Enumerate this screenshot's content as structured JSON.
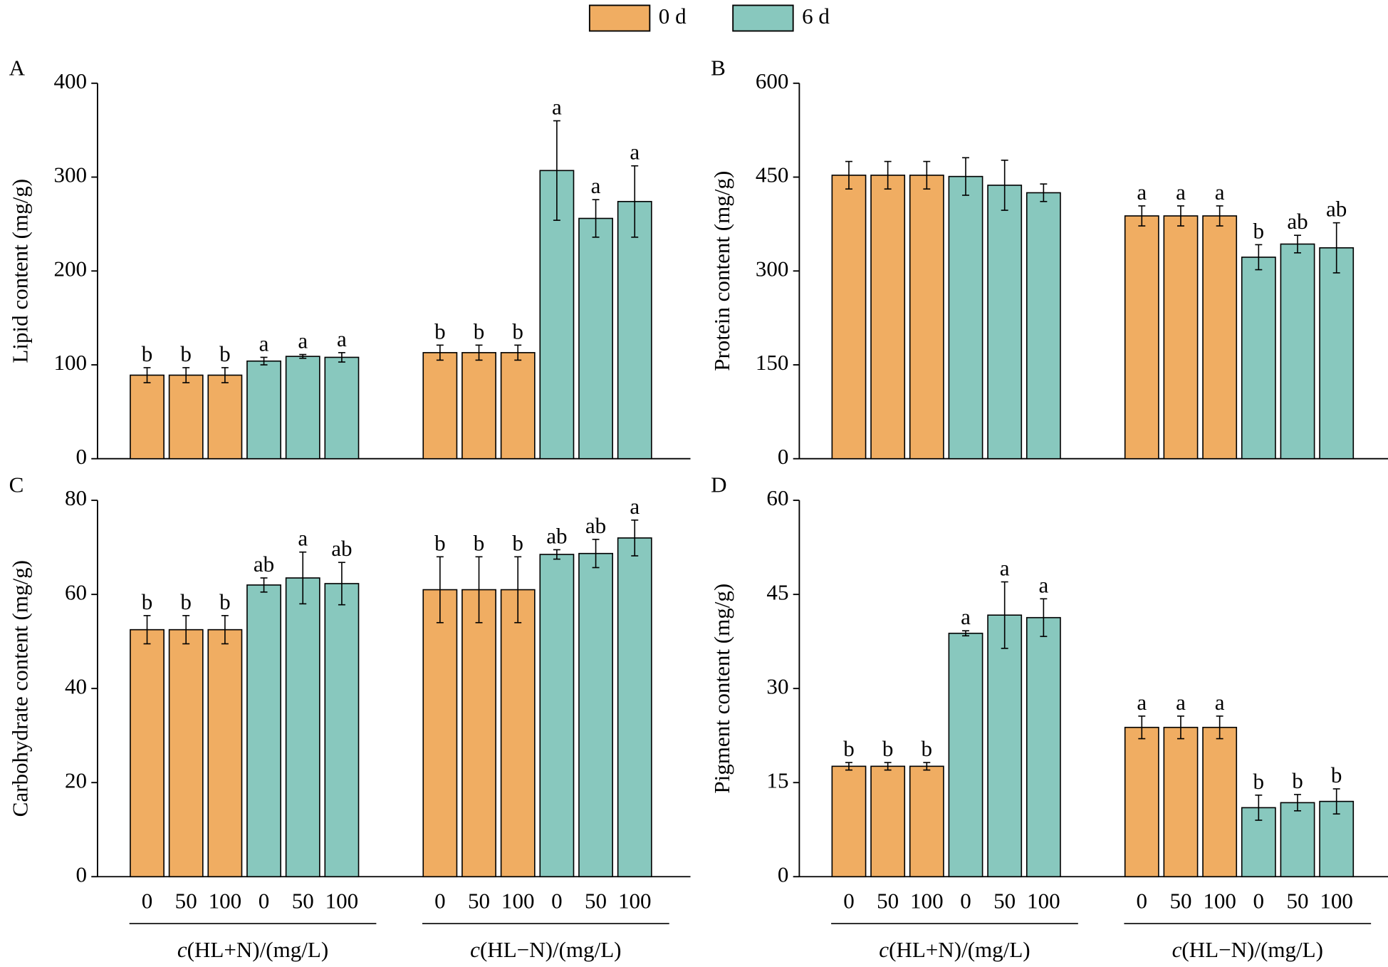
{
  "chart_data": [
    {
      "type": "bar",
      "panel": "A",
      "ylabel": "Lipid content (mg/g)",
      "ylim": [
        0,
        400
      ],
      "yticks": [
        0,
        100,
        200,
        300,
        400
      ],
      "series": [
        {
          "name": "0 d",
          "color": "#f0ad62",
          "values": [
            89,
            89,
            89,
            null,
            null,
            null,
            113,
            113,
            113,
            null,
            null,
            null
          ],
          "errors": [
            8,
            8,
            8,
            null,
            null,
            null,
            8,
            8,
            8,
            null,
            null,
            null
          ],
          "labels": [
            "b",
            "b",
            "b",
            null,
            null,
            null,
            "b",
            "b",
            "b",
            null,
            null,
            null
          ]
        },
        {
          "name": "6 d",
          "color": "#88c8be",
          "values": [
            null,
            null,
            null,
            104,
            109,
            108,
            null,
            null,
            null,
            307,
            256,
            274
          ],
          "errors": [
            null,
            null,
            null,
            4,
            2,
            5,
            null,
            null,
            null,
            53,
            20,
            38
          ],
          "labels": [
            null,
            null,
            null,
            "a",
            "a",
            "a",
            null,
            null,
            null,
            "a",
            "a",
            "a"
          ]
        }
      ]
    },
    {
      "type": "bar",
      "panel": "B",
      "ylabel": "Protein content (mg/g)",
      "ylim": [
        0,
        600
      ],
      "yticks": [
        0,
        150,
        300,
        450,
        600
      ],
      "series": [
        {
          "name": "0 d",
          "color": "#f0ad62",
          "values": [
            453,
            453,
            453,
            null,
            null,
            null,
            388,
            388,
            388,
            null,
            null,
            null
          ],
          "errors": [
            22,
            22,
            22,
            null,
            null,
            null,
            16,
            16,
            16,
            null,
            null,
            null
          ],
          "labels": [
            null,
            null,
            null,
            null,
            null,
            null,
            "a",
            "a",
            "a",
            null,
            null,
            null
          ]
        },
        {
          "name": "6 d",
          "color": "#88c8be",
          "values": [
            null,
            null,
            null,
            451,
            437,
            425,
            null,
            null,
            null,
            322,
            343,
            337
          ],
          "errors": [
            null,
            null,
            null,
            30,
            40,
            14,
            null,
            null,
            null,
            20,
            14,
            40
          ],
          "labels": [
            null,
            null,
            null,
            null,
            null,
            null,
            null,
            null,
            null,
            "b",
            "ab",
            "ab"
          ]
        }
      ]
    },
    {
      "type": "bar",
      "panel": "C",
      "ylabel": "Carbohydrate content (mg/g)",
      "ylim": [
        0,
        80
      ],
      "yticks": [
        0,
        20,
        40,
        60,
        80
      ],
      "categories": [
        "0",
        "50",
        "100",
        "0",
        "50",
        "100",
        "0",
        "50",
        "100",
        "0",
        "50",
        "100"
      ],
      "groups": [
        "c(HL+N)/(mg/L)",
        "c(HL−N)/(mg/L)"
      ],
      "series": [
        {
          "name": "0 d",
          "color": "#f0ad62",
          "values": [
            52.5,
            52.5,
            52.5,
            null,
            null,
            null,
            61,
            61,
            61,
            null,
            null,
            null
          ],
          "errors": [
            3,
            3,
            3,
            null,
            null,
            null,
            7,
            7,
            7,
            null,
            null,
            null
          ],
          "labels": [
            "b",
            "b",
            "b",
            null,
            null,
            null,
            "b",
            "b",
            "b",
            null,
            null,
            null
          ]
        },
        {
          "name": "6 d",
          "color": "#88c8be",
          "values": [
            null,
            null,
            null,
            62,
            63.5,
            62.3,
            null,
            null,
            null,
            68.5,
            68.7,
            72
          ],
          "errors": [
            null,
            null,
            null,
            1.5,
            5.5,
            4.5,
            null,
            null,
            null,
            1,
            3,
            3.8
          ],
          "labels": [
            null,
            null,
            null,
            "ab",
            "a",
            "ab",
            null,
            null,
            null,
            "ab",
            "ab",
            "a"
          ]
        }
      ]
    },
    {
      "type": "bar",
      "panel": "D",
      "ylabel": "Pigment content (mg/g)",
      "ylim": [
        0,
        60
      ],
      "yticks": [
        0,
        15,
        30,
        45,
        60
      ],
      "categories": [
        "0",
        "50",
        "100",
        "0",
        "50",
        "100",
        "0",
        "50",
        "100",
        "0",
        "50",
        "100"
      ],
      "groups": [
        "c(HL+N)/(mg/L)",
        "c(HL−N)/(mg/L)"
      ],
      "series": [
        {
          "name": "0 d",
          "color": "#f0ad62",
          "values": [
            17.6,
            17.6,
            17.6,
            null,
            null,
            null,
            23.8,
            23.8,
            23.8,
            null,
            null,
            null
          ],
          "errors": [
            0.6,
            0.6,
            0.6,
            null,
            null,
            null,
            1.8,
            1.8,
            1.8,
            null,
            null,
            null
          ],
          "labels": [
            "b",
            "b",
            "b",
            null,
            null,
            null,
            "a",
            "a",
            "a",
            null,
            null,
            null
          ]
        },
        {
          "name": "6 d",
          "color": "#88c8be",
          "values": [
            null,
            null,
            null,
            38.8,
            41.7,
            41.3,
            null,
            null,
            null,
            11,
            11.8,
            12
          ],
          "errors": [
            null,
            null,
            null,
            0.4,
            5.3,
            3,
            null,
            null,
            null,
            2,
            1.3,
            2
          ],
          "labels": [
            null,
            null,
            null,
            "a",
            "a",
            "a",
            null,
            null,
            null,
            "b",
            "b",
            "b"
          ]
        }
      ]
    }
  ]
}
